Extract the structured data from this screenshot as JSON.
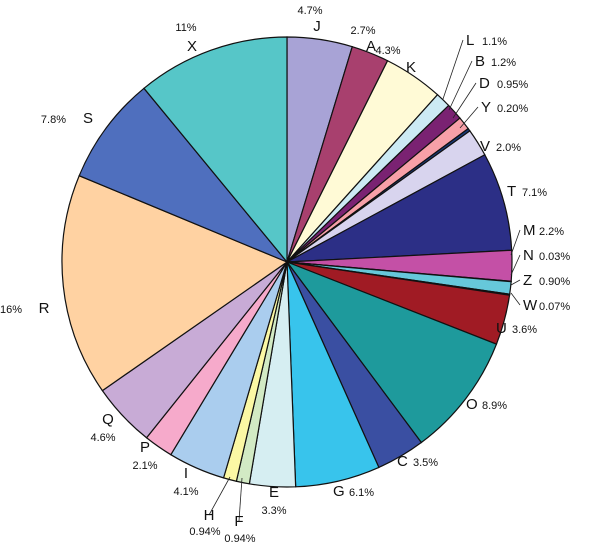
{
  "chart_data": {
    "type": "pie",
    "start_angle_deg": 0,
    "direction": "clockwise",
    "slices": [
      {
        "name": "J",
        "percent_label": "4.7%",
        "value": 4.7,
        "color": "#A8A3D6"
      },
      {
        "name": "A",
        "percent_label": "2.7%",
        "value": 2.7,
        "color": "#A8406E"
      },
      {
        "name": "K",
        "percent_label": "4.3%",
        "value": 4.3,
        "color": "#FFFAD6"
      },
      {
        "name": "L",
        "percent_label": "1.1%",
        "value": 1.1,
        "color": "#CCEAF4"
      },
      {
        "name": "B",
        "percent_label": "1.2%",
        "value": 1.2,
        "color": "#7A2272"
      },
      {
        "name": "D",
        "percent_label": "0.95%",
        "value": 0.95,
        "color": "#F7A0A8"
      },
      {
        "name": "Y",
        "percent_label": "0.20%",
        "value": 0.2,
        "color": "#1A3A7A"
      },
      {
        "name": "V",
        "percent_label": "2.0%",
        "value": 2.0,
        "color": "#D8D4EE"
      },
      {
        "name": "T",
        "percent_label": "7.1%",
        "value": 7.1,
        "color": "#2C2F86"
      },
      {
        "name": "M",
        "percent_label": "2.2%",
        "value": 2.2,
        "color": "#C450A6"
      },
      {
        "name": "N",
        "percent_label": "0.03%",
        "value": 0.03,
        "color": "#C62828"
      },
      {
        "name": "Z",
        "percent_label": "0.90%",
        "value": 0.9,
        "color": "#66C8DA"
      },
      {
        "name": "W",
        "percent_label": "0.07%",
        "value": 0.07,
        "color": "#3A3A9A"
      },
      {
        "name": "U",
        "percent_label": "3.6%",
        "value": 3.6,
        "color": "#A01B24"
      },
      {
        "name": "O",
        "percent_label": "8.9%",
        "value": 8.9,
        "color": "#1E9A9C"
      },
      {
        "name": "C",
        "percent_label": "3.5%",
        "value": 3.5,
        "color": "#3A4FA2"
      },
      {
        "name": "G",
        "percent_label": "6.1%",
        "value": 6.1,
        "color": "#38C4EC"
      },
      {
        "name": "E",
        "percent_label": "3.3%",
        "value": 3.3,
        "color": "#D6EEF2"
      },
      {
        "name": "F",
        "percent_label": "0.94%",
        "value": 0.94,
        "color": "#D2EAC4"
      },
      {
        "name": "H",
        "percent_label": "0.94%",
        "value": 0.94,
        "color": "#FBF8A4"
      },
      {
        "name": "I",
        "percent_label": "4.1%",
        "value": 4.1,
        "color": "#AACDEE"
      },
      {
        "name": "P",
        "percent_label": "2.1%",
        "value": 2.1,
        "color": "#F6AACB"
      },
      {
        "name": "Q",
        "percent_label": "4.6%",
        "value": 4.6,
        "color": "#C8ABD6"
      },
      {
        "name": "R",
        "percent_label": "16%",
        "value": 16,
        "color": "#FFD2A2"
      },
      {
        "name": "S",
        "percent_label": "7.8%",
        "value": 7.8,
        "color": "#4F6FBE"
      },
      {
        "name": "X",
        "percent_label": "11%",
        "value": 11,
        "color": "#56C6C8"
      }
    ]
  }
}
